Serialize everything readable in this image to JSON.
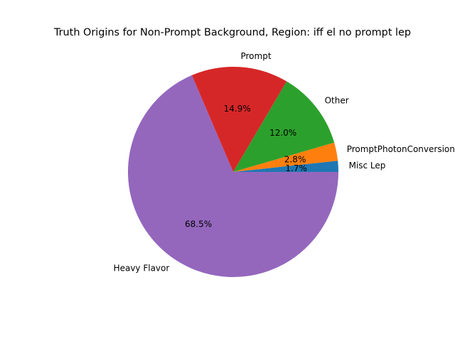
{
  "chart_data": {
    "type": "pie",
    "title": "Truth Origins for Non-Prompt Background, Region: iff el no prompt lep",
    "slices": [
      {
        "label": "Misc Lep",
        "value": 1.7,
        "pct_label": "1.7%",
        "color": "#1f77b4"
      },
      {
        "label": "PromptPhotonConversions",
        "value": 2.8,
        "pct_label": "2.8%",
        "color": "#ff7f0e"
      },
      {
        "label": "Other",
        "value": 12.0,
        "pct_label": "12.0%",
        "color": "#2ca02c"
      },
      {
        "label": "Prompt",
        "value": 14.9,
        "pct_label": "14.9%",
        "color": "#d62728"
      },
      {
        "label": "Heavy Flavor",
        "value": 68.5,
        "pct_label": "68.5%",
        "color": "#9467bd"
      }
    ],
    "start_angle_deg": 0,
    "direction": "counterclockwise"
  }
}
